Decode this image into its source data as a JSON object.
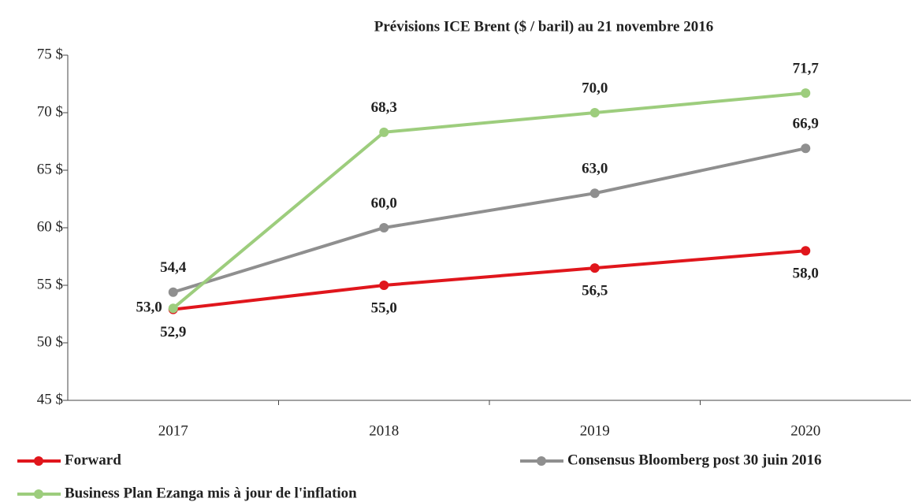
{
  "chart_data": {
    "type": "line",
    "title": "Prévisions ICE Brent ($ / baril) au 21 novembre 2016",
    "categories": [
      "2017",
      "2018",
      "2019",
      "2020"
    ],
    "series": [
      {
        "name": "Forward",
        "color": "#e0161c",
        "values": [
          52.9,
          55.0,
          56.5,
          58.0
        ],
        "value_labels": [
          "52,9",
          "55,0",
          "56,5",
          "58,0"
        ]
      },
      {
        "name": "Consensus Bloomberg post 30 juin 2016",
        "color": "#8f8f8f",
        "values": [
          54.4,
          60.0,
          63.0,
          66.9
        ],
        "value_labels": [
          "54,4",
          "60,0",
          "63,0",
          "66,9"
        ]
      },
      {
        "name": "Business Plan Ezanga mis à jour de l'inflation",
        "color": "#9dcd7d",
        "values": [
          53.0,
          68.3,
          70.0,
          71.7
        ],
        "value_labels": [
          "53,0",
          "68,3",
          "70,0",
          "71,7"
        ]
      }
    ],
    "ylim": [
      45,
      75
    ],
    "yticks": [
      {
        "value": 45,
        "label": "45 $"
      },
      {
        "value": 50,
        "label": "50 $"
      },
      {
        "value": 55,
        "label": "55 $"
      },
      {
        "value": 60,
        "label": "60 $"
      },
      {
        "value": 65,
        "label": "65 $"
      },
      {
        "value": 70,
        "label": "70 $"
      },
      {
        "value": 75,
        "label": "75 $"
      }
    ],
    "grid": false
  }
}
